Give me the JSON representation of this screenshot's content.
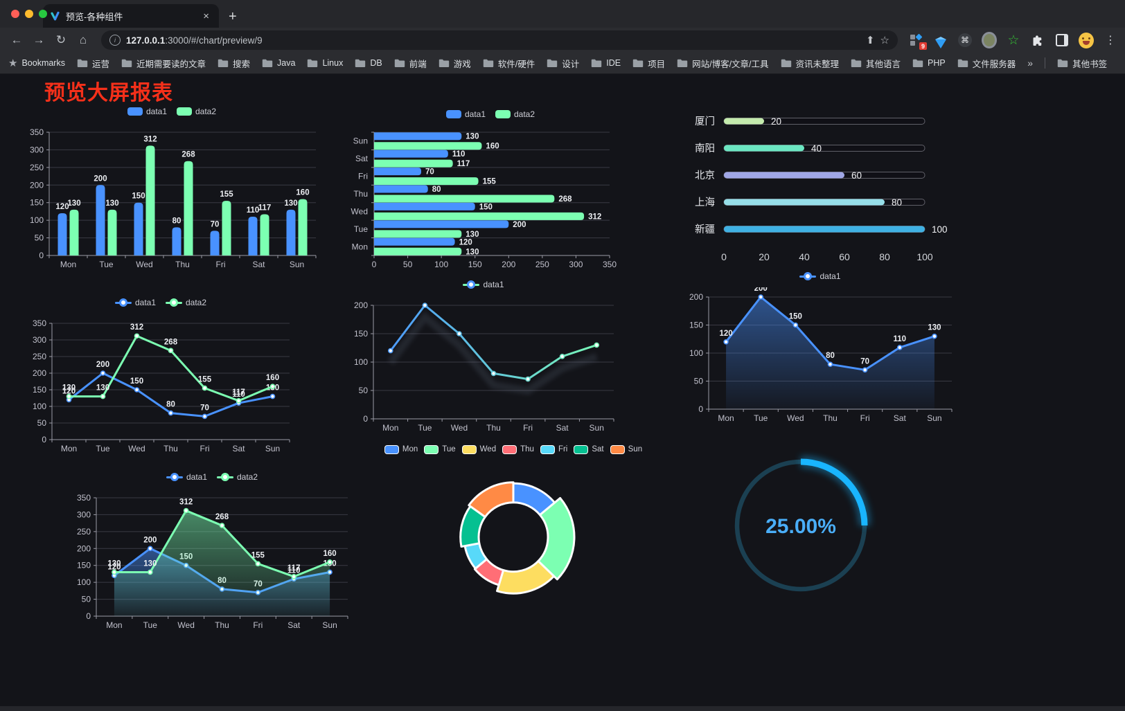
{
  "browser": {
    "tab_title": "预览-各种组件",
    "close_glyph": "×",
    "new_tab_glyph": "+",
    "back_glyph": "←",
    "forward_glyph": "→",
    "reload_glyph": "↻",
    "home_glyph": "⌂",
    "url_host": "127.0.0.1",
    "url_rest": ":3000/#/chart/preview/9",
    "share_glyph": "⬆",
    "star_glyph": "☆",
    "cmd_glyph": "⌘",
    "green_star_glyph": "☆",
    "menu_glyph": "⋮",
    "extension_badge": "9",
    "bookmarks_label": "Bookmarks",
    "bookmarks": [
      "运营",
      "近期需要读的文章",
      "搜索",
      "Java",
      "Linux",
      "DB",
      "前端",
      "游戏",
      "软件/硬件",
      "设计",
      "IDE",
      "项目",
      "网站/博客/文章/工具",
      "资讯未整理",
      "其他语言",
      "PHP",
      "文件服务器"
    ],
    "overflow_glyph": "»",
    "other_bookmarks": "其他书签"
  },
  "page": {
    "title": "预览大屏报表"
  },
  "chart_data": [
    {
      "id": "bar-grouped",
      "type": "bar",
      "legend": "roundrect",
      "labels": true,
      "categories": [
        "Mon",
        "Tue",
        "Wed",
        "Thu",
        "Fri",
        "Sat",
        "Sun"
      ],
      "ylim": [
        0,
        350
      ],
      "ytick_step": 50,
      "series": [
        {
          "name": "data1",
          "color": "#4992ff",
          "values": [
            120,
            200,
            150,
            80,
            70,
            110,
            130
          ]
        },
        {
          "name": "data2",
          "color": "#7cffb2",
          "values": [
            130,
            130,
            312,
            268,
            155,
            117,
            160
          ]
        }
      ]
    },
    {
      "id": "hbar-grouped",
      "type": "hbar",
      "legend": "roundrect",
      "labels": true,
      "categories": [
        "Mon",
        "Tue",
        "Wed",
        "Thu",
        "Fri",
        "Sat",
        "Sun"
      ],
      "xlim": [
        0,
        350
      ],
      "xtick_step": 50,
      "series": [
        {
          "name": "data1",
          "color": "#4992ff",
          "values": [
            120,
            200,
            150,
            80,
            70,
            110,
            130
          ]
        },
        {
          "name": "data2",
          "color": "#7cffb2",
          "values": [
            130,
            130,
            312,
            268,
            155,
            117,
            160
          ]
        }
      ]
    },
    {
      "id": "progress-list",
      "type": "progress",
      "max": 100,
      "xticks": [
        0,
        20,
        40,
        60,
        80,
        100
      ],
      "items": [
        {
          "label": "厦门",
          "value": 20,
          "color": "#c4ebad"
        },
        {
          "label": "南阳",
          "value": 40,
          "color": "#6be6c1"
        },
        {
          "label": "北京",
          "value": 60,
          "color": "#a0a7e6"
        },
        {
          "label": "上海",
          "value": 80,
          "color": "#96dee8"
        },
        {
          "label": "新疆",
          "value": 100,
          "color": "#3fb1e3"
        }
      ]
    },
    {
      "id": "line-dual",
      "type": "line",
      "legend": "line",
      "labels": true,
      "categories": [
        "Mon",
        "Tue",
        "Wed",
        "Thu",
        "Fri",
        "Sat",
        "Sun"
      ],
      "ylim": [
        0,
        350
      ],
      "ytick_step": 50,
      "series": [
        {
          "name": "data1",
          "color": "#4992ff",
          "values": [
            120,
            200,
            150,
            80,
            70,
            110,
            130
          ]
        },
        {
          "name": "data2",
          "color": "#7cffb2",
          "values": [
            130,
            130,
            312,
            268,
            155,
            117,
            160
          ]
        }
      ]
    },
    {
      "id": "line-gradient",
      "type": "line",
      "legend": "line",
      "labels": false,
      "categories": [
        "Mon",
        "Tue",
        "Wed",
        "Thu",
        "Fri",
        "Sat",
        "Sun"
      ],
      "ylim": [
        0,
        200
      ],
      "ytick_step": 50,
      "series": [
        {
          "name": "data1",
          "gradient": [
            "#4992ff",
            "#7cffb2"
          ],
          "shadow": true,
          "values": [
            120,
            200,
            150,
            80,
            70,
            110,
            130
          ]
        }
      ]
    },
    {
      "id": "line-area",
      "type": "line",
      "legend": "line",
      "labels": true,
      "categories": [
        "Mon",
        "Tue",
        "Wed",
        "Thu",
        "Fri",
        "Sat",
        "Sun"
      ],
      "ylim": [
        0,
        200
      ],
      "ytick_step": 50,
      "series": [
        {
          "name": "data1",
          "color": "#4992ff",
          "area": true,
          "values": [
            120,
            200,
            150,
            80,
            70,
            110,
            130
          ]
        }
      ]
    },
    {
      "id": "line-area-dual",
      "type": "line",
      "legend": "line",
      "labels": true,
      "categories": [
        "Mon",
        "Tue",
        "Wed",
        "Thu",
        "Fri",
        "Sat",
        "Sun"
      ],
      "ylim": [
        0,
        350
      ],
      "ytick_step": 50,
      "series": [
        {
          "name": "data1",
          "color": "#4992ff",
          "area": true,
          "values": [
            120,
            200,
            150,
            80,
            70,
            110,
            130
          ]
        },
        {
          "name": "data2",
          "color": "#7cffb2",
          "area": true,
          "values": [
            130,
            130,
            312,
            268,
            155,
            117,
            160
          ]
        }
      ]
    },
    {
      "id": "pie-rose",
      "type": "pie",
      "legend": "pie",
      "inner_radius": 50,
      "items": [
        {
          "name": "Mon",
          "value": 120,
          "color": "#4992ff"
        },
        {
          "name": "Tue",
          "value": 200,
          "color": "#7cffb2"
        },
        {
          "name": "Wed",
          "value": 150,
          "color": "#fddd60"
        },
        {
          "name": "Thu",
          "value": 80,
          "color": "#ff6e76"
        },
        {
          "name": "Fri",
          "value": 70,
          "color": "#58d9f9"
        },
        {
          "name": "Sat",
          "value": 110,
          "color": "#05c091"
        },
        {
          "name": "Sun",
          "value": 130,
          "color": "#ff8a45"
        }
      ]
    },
    {
      "id": "gauge-ring",
      "type": "gauge",
      "label": "25.00%",
      "percent": 25,
      "color": "#19b5ff",
      "track": "#1b4052",
      "text_color": "#4aaef8"
    }
  ]
}
